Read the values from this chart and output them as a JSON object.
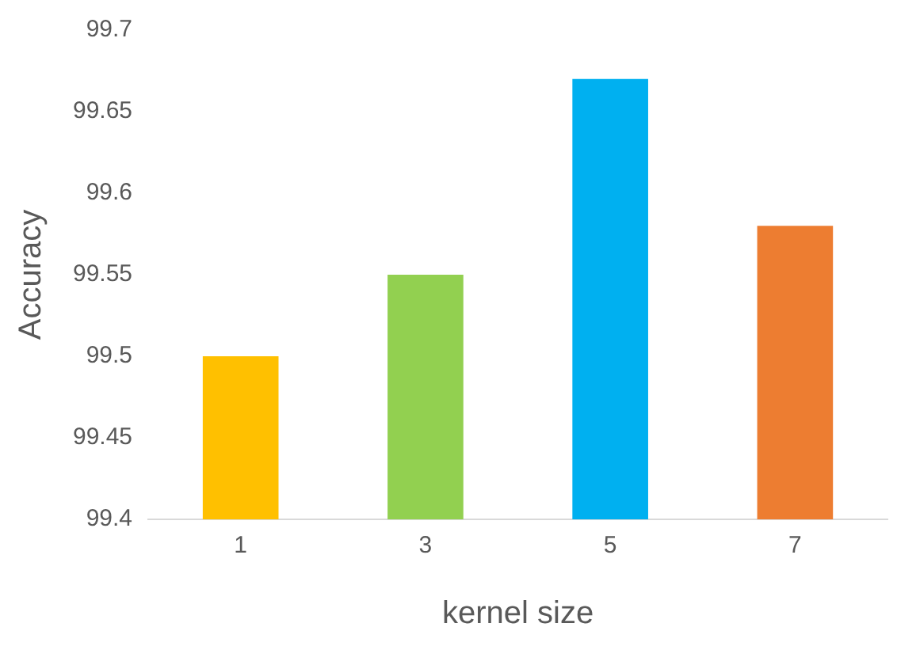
{
  "chart_data": {
    "type": "bar",
    "xlabel": "kernel size",
    "ylabel": "Accuracy",
    "categories": [
      "1",
      "3",
      "5",
      "7"
    ],
    "values": [
      99.5,
      99.55,
      99.67,
      99.58
    ],
    "colors": [
      "#ffc000",
      "#92d050",
      "#00b0f0",
      "#ed7d31"
    ],
    "ylim": [
      99.4,
      99.7
    ],
    "yticks": [
      99.4,
      99.45,
      99.5,
      99.55,
      99.6,
      99.65,
      99.7
    ],
    "grid": false,
    "legend": false
  }
}
